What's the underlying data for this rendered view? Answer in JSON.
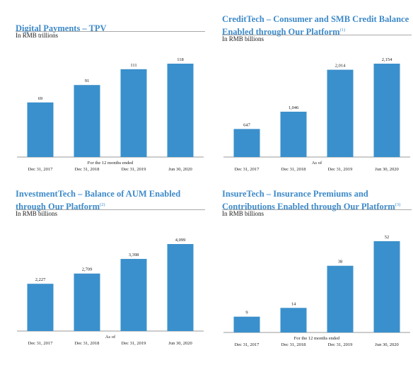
{
  "colors": {
    "bar": "#3a90cc",
    "title": "#3e8ac9",
    "rule": "#a9a9a9",
    "axis": "#9a9a9a",
    "text": "#1a1a1a"
  },
  "chart_data": [
    {
      "type": "bar",
      "title": "Digital Payments – TPV",
      "title_footnote": "",
      "unit_label": "In RMB trillions",
      "note": "For the 12 months ended",
      "categories": [
        "Dec 31, 2017",
        "Dec 31, 2018",
        "Dec 31, 2019",
        "Jun 30, 2020"
      ],
      "values": [
        69,
        91,
        111,
        118
      ],
      "value_labels": [
        "69",
        "91",
        "111",
        "118"
      ],
      "ylim": [
        0,
        130
      ]
    },
    {
      "type": "bar",
      "title": "CreditTech – Consumer and SMB Credit Balance Enabled through Our Platform",
      "title_footnote": "(1)",
      "unit_label": "In RMB billions",
      "note": "As of",
      "categories": [
        "Dec 31, 2017",
        "Dec 31, 2018",
        "Dec 31, 2019",
        "Jun 30, 2020"
      ],
      "values": [
        647,
        1046,
        2014,
        2154
      ],
      "value_labels": [
        "647",
        "1,046",
        "2,014",
        "2,154"
      ],
      "ylim": [
        0,
        2300
      ]
    },
    {
      "type": "bar",
      "title": "InvestmentTech – Balance of AUM Enabled through Our Platform",
      "title_footnote": "(2)",
      "unit_label": "In RMB billions",
      "note": "As of",
      "categories": [
        "Dec 31, 2017",
        "Dec 31, 2018",
        "Dec 31, 2019",
        "Jun 30, 2020"
      ],
      "values": [
        2227,
        2709,
        3398,
        4099
      ],
      "value_labels": [
        "2,227",
        "2,709",
        "3,398",
        "4,099"
      ],
      "ylim": [
        0,
        4500
      ]
    },
    {
      "type": "bar",
      "title": "InsureTech – Insurance Premiums and Contributions Enabled through Our Platform",
      "title_footnote": "(3)",
      "unit_label": "In RMB billions",
      "note": "For the 12 months ended",
      "categories": [
        "Dec 31, 2017",
        "Dec 31, 2018",
        "Dec 31, 2019",
        "Jun 30, 2020"
      ],
      "values": [
        9,
        14,
        38,
        52
      ],
      "value_labels": [
        "9",
        "14",
        "38",
        "52"
      ],
      "ylim": [
        0,
        57
      ]
    }
  ]
}
